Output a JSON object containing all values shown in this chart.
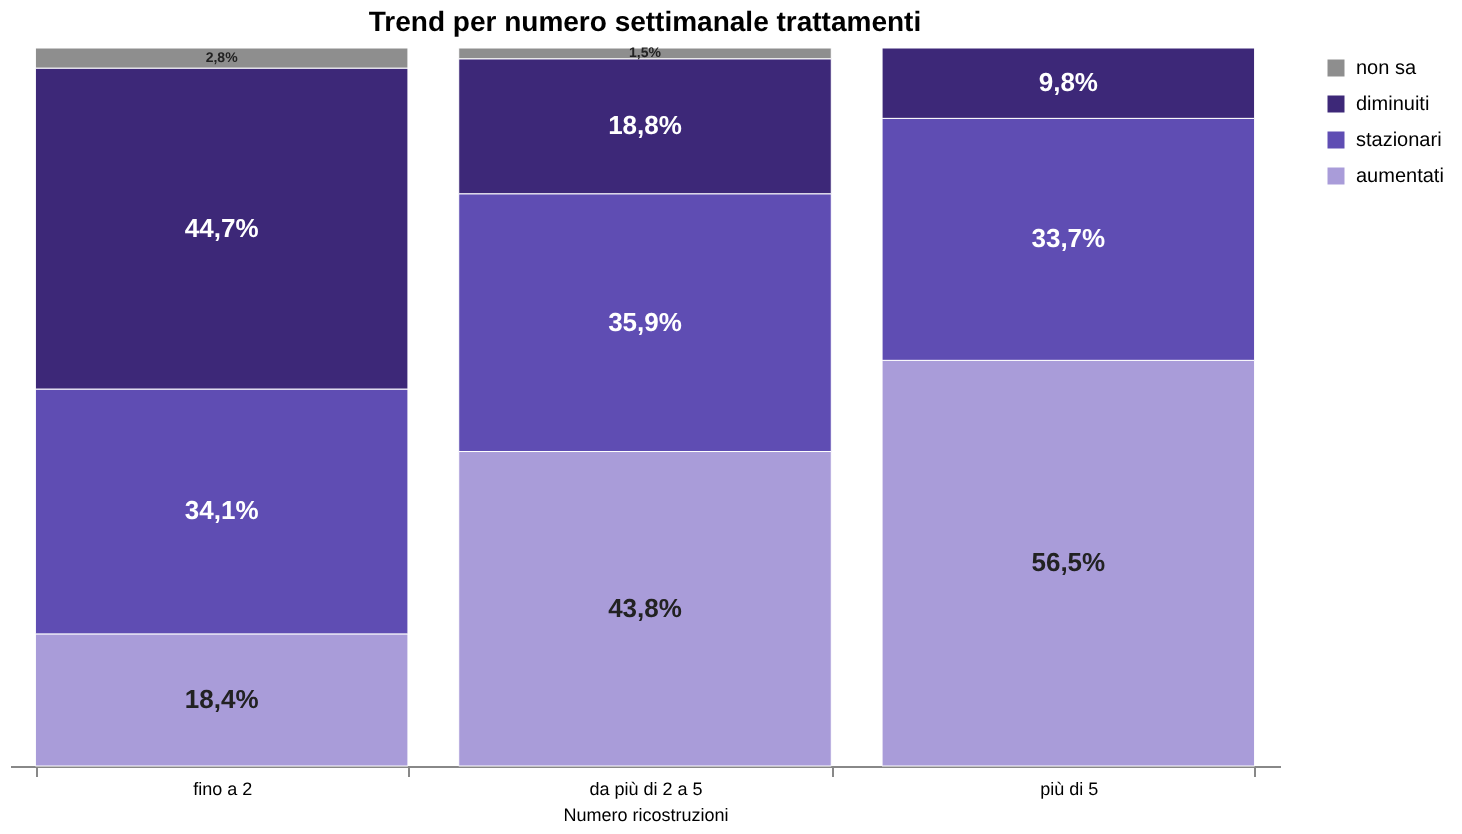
{
  "chart_data": {
    "type": "bar",
    "stacked": true,
    "title": "Trend per numero settimanale trattamenti",
    "xlabel": "Numero ricostruzioni",
    "categories": [
      "fino a 2",
      "da più di 2 a 5",
      "più di 5"
    ],
    "series": [
      {
        "name": "aumentati",
        "color": "#a99cd9",
        "values": [
          18.4,
          43.8,
          56.5
        ],
        "value_labels": [
          "18,4%",
          "43,8%",
          "56,5%"
        ]
      },
      {
        "name": "stazionari",
        "color": "#5f4db3",
        "values": [
          34.1,
          35.9,
          33.7
        ],
        "value_labels": [
          "34,1%",
          "35,9%",
          "33,7%"
        ]
      },
      {
        "name": "diminuiti",
        "color": "#3d2878",
        "values": [
          44.7,
          18.8,
          9.8
        ],
        "value_labels": [
          "44,7%",
          "18,8%",
          "9,8%"
        ]
      },
      {
        "name": "non sa",
        "color": "#8e8e8e",
        "values": [
          2.8,
          1.5,
          null
        ],
        "value_labels": [
          "2,8%",
          "1,5%",
          null
        ]
      }
    ],
    "ylim": [
      0,
      100
    ],
    "tick_labels": "x",
    "grid": false,
    "legend": "right"
  }
}
